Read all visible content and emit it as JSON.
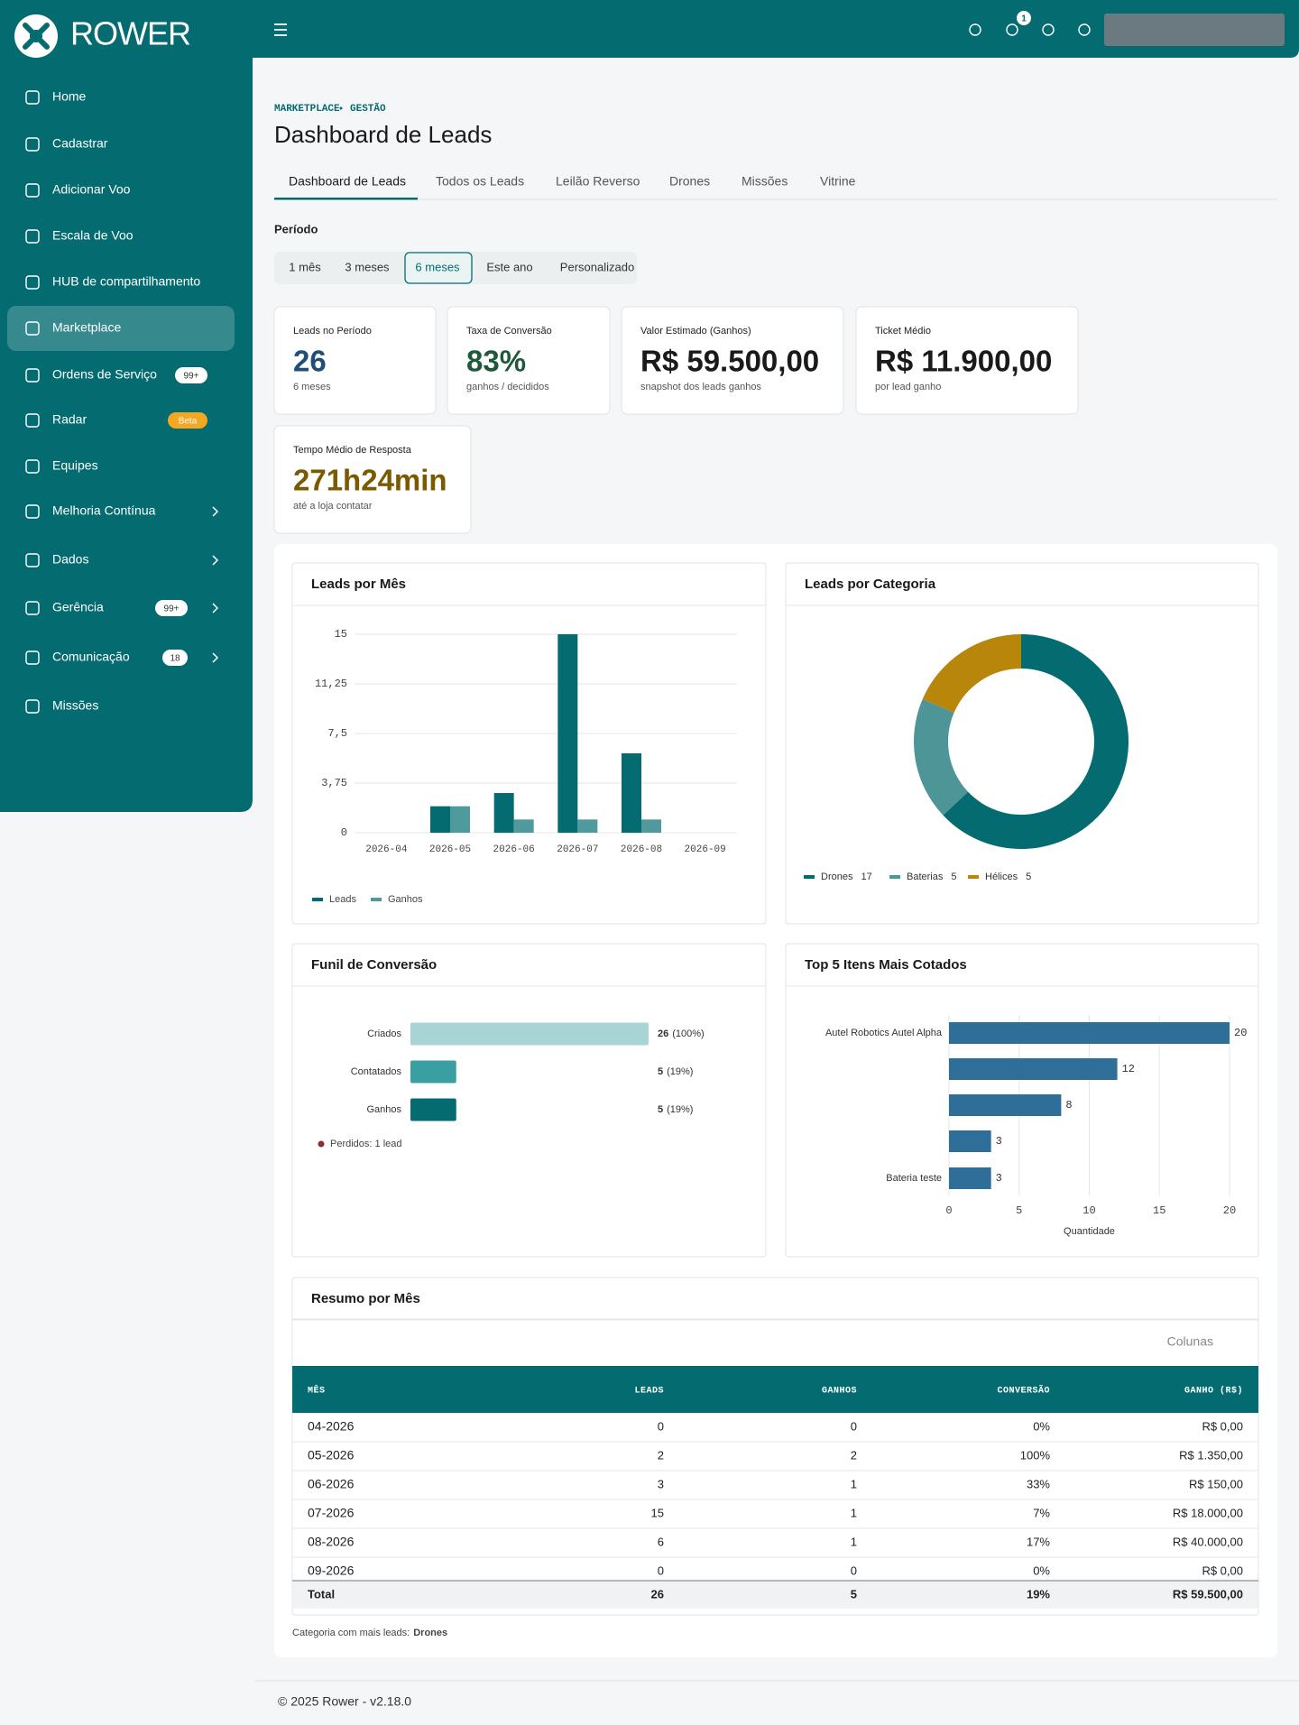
{
  "sidebar": {
    "brand": "ROWER",
    "items": [
      {
        "label": "Home"
      },
      {
        "label": "Cadastrar"
      },
      {
        "label": "Adicionar Voo"
      },
      {
        "label": "Escala de Voo"
      },
      {
        "label": "HUB de compartilhamento"
      },
      {
        "label": "Marketplace",
        "active": true
      },
      {
        "label": "Ordens de Serviço",
        "badge": "99+"
      },
      {
        "label": "Radar",
        "badge": "Beta",
        "badge_color": "#f5a623"
      },
      {
        "label": "Equipes"
      },
      {
        "label": "Melhoria Contínua",
        "submenu": true
      },
      {
        "label": "Dados",
        "submenu": true
      },
      {
        "label": "Gerência",
        "badge": "99+",
        "submenu": true
      },
      {
        "label": "Comunicação",
        "badge": "18",
        "submenu": true
      },
      {
        "label": "Missões"
      }
    ]
  },
  "topbar": {
    "notifications": 1
  },
  "breadcrumb": [
    "MARKETPLACE",
    "GESTÃO"
  ],
  "title": "Dashboard de Leads",
  "tabs": [
    {
      "label": "Dashboard de Leads",
      "active": true
    },
    {
      "label": "Todos os Leads"
    },
    {
      "label": "Leilão Reverso"
    },
    {
      "label": "Drones"
    },
    {
      "label": "Missões"
    },
    {
      "label": "Vitrine"
    }
  ],
  "period": {
    "label": "Período",
    "options": [
      {
        "label": "1 mês"
      },
      {
        "label": "3 meses"
      },
      {
        "label": "6 meses",
        "active": true
      },
      {
        "label": "Este ano"
      },
      {
        "label": "Personalizado"
      }
    ]
  },
  "kpis": [
    {
      "label": "Leads no Período",
      "value": "26",
      "note": "6 meses",
      "color": "#1f4e79"
    },
    {
      "label": "Taxa de Conversão",
      "value": "83%",
      "note": "ganhos / decididos",
      "color": "#1e5a3a"
    },
    {
      "label": "Valor Estimado (Ganhos)",
      "value": "R$ 59.500,00",
      "note": "snapshot dos leads ganhos",
      "color": "#1a1a1a"
    },
    {
      "label": "Ticket Médio",
      "value": "R$ 11.900,00",
      "note": "por lead ganho",
      "color": "#1a1a1a"
    },
    {
      "label": "Tempo Médio de Resposta",
      "value": "271h24min",
      "note": "até a loja contatar",
      "color": "#7a5a00"
    }
  ],
  "chart_data": [
    {
      "type": "bar",
      "title": "Leads por Mês",
      "categories": [
        "2026-04",
        "2026-05",
        "2026-06",
        "2026-07",
        "2026-08",
        "2026-09"
      ],
      "series": [
        {
          "name": "Leads",
          "color": "#046c70",
          "values": [
            0,
            2,
            3,
            15,
            6,
            0
          ]
        },
        {
          "name": "Ganhos",
          "color": "#4e9a9c",
          "values": [
            0,
            2,
            1,
            1,
            1,
            0
          ]
        }
      ],
      "ylim": [
        0,
        15
      ],
      "yticks": [
        0,
        {
          "value": 3.75,
          "label": "3,75"
        },
        {
          "value": 7.5,
          "label": "7,5"
        },
        {
          "value": 11.25,
          "label": "11,25"
        },
        15
      ],
      "grid": true
    },
    {
      "type": "pie",
      "donut": true,
      "title": "Leads por Categoria",
      "categories": [
        "Drones",
        "Baterias",
        "Hélices"
      ],
      "values": [
        17,
        5,
        5
      ],
      "colors": [
        "#046c70",
        "#4e9598",
        "#b8860b"
      ]
    },
    {
      "type": "funnel",
      "title": "Funil de Conversão",
      "categories": [
        "Criados",
        "Contatados",
        "Ganhos"
      ],
      "values": [
        26,
        5,
        5
      ],
      "share_labels": [
        "(100%)",
        "(19%)",
        "(19%)"
      ],
      "colors": [
        "#a8d4d6",
        "#3a9fa1",
        "#046c70"
      ],
      "note": "Perdidos: 1 lead",
      "note_color": "#8b2e2e"
    },
    {
      "type": "barh",
      "title": "Top 5 Itens Mais Cotados",
      "categories": [
        "Autel Robotics Autel Alpha",
        null,
        null,
        null,
        "Bateria teste"
      ],
      "values": [
        20,
        12,
        8,
        3,
        3
      ],
      "color": "#2e6e99",
      "xlim": [
        0,
        20
      ],
      "xticks": [
        0,
        5,
        10,
        15,
        20
      ],
      "xlabel": "Quantidade",
      "grid": true
    }
  ],
  "summary": {
    "title": "Resumo por Mês",
    "columns_button": "Colunas",
    "columns": [
      "MÊS",
      "LEADS",
      "GANHOS",
      "CONVERSÃO",
      "GANHO (R$)"
    ],
    "rows": [
      [
        "04-2026",
        0,
        0,
        "0%",
        "R$ 0,00"
      ],
      [
        "05-2026",
        2,
        2,
        "100%",
        "R$ 1.350,00"
      ],
      [
        "06-2026",
        3,
        1,
        "33%",
        "R$ 150,00"
      ],
      [
        "07-2026",
        15,
        1,
        "7%",
        "R$ 18.000,00"
      ],
      [
        "08-2026",
        6,
        1,
        "17%",
        "R$ 40.000,00"
      ],
      [
        "09-2026",
        0,
        0,
        "0%",
        "R$ 0,00"
      ]
    ],
    "total": [
      "Total",
      26,
      5,
      "19%",
      "R$ 59.500,00"
    ],
    "footnote": {
      "text": "Categoria com mais leads:",
      "value": "Drones"
    }
  },
  "footer": "© 2025 Rower - v2.18.0"
}
